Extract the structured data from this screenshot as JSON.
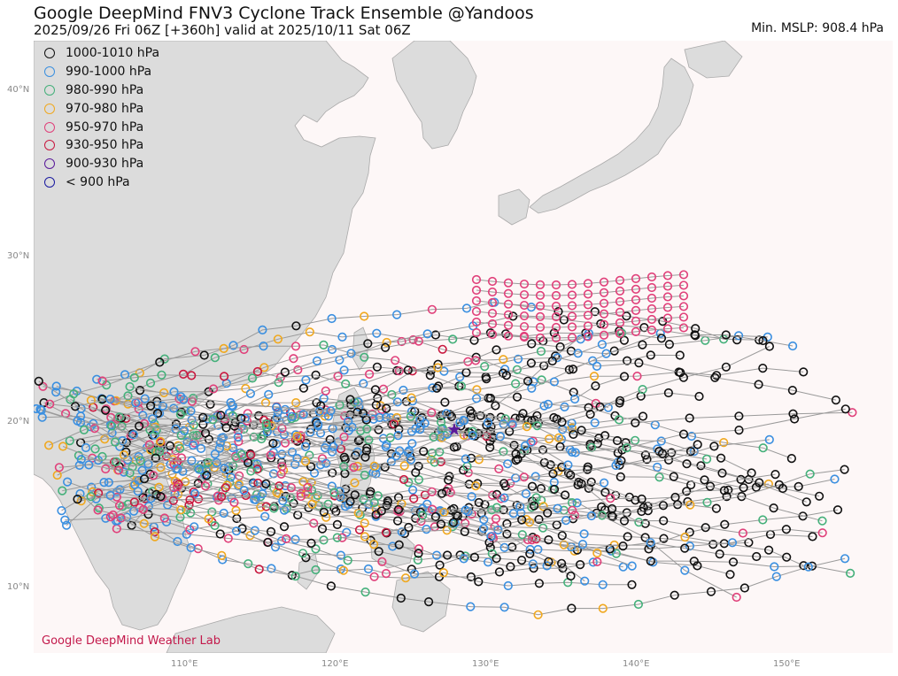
{
  "header": {
    "title": "Google DeepMind FNV3 Cyclone Track Ensemble @Yandoos",
    "subtitle": "2025/09/26  Fri  06Z [+360h] valid at 2025/10/11  Sat  06Z",
    "min_mslp": "Min. MSLP: 908.4 hPa"
  },
  "map": {
    "lat_ticks": [
      "40°N",
      "30°N",
      "20°N",
      "10°N"
    ],
    "lon_ticks": [
      "110°E",
      "120°E",
      "130°E",
      "140°E",
      "150°E"
    ],
    "land_color": "#dcdcdc",
    "ocean_color": "#fdf7f7"
  },
  "legend": {
    "items": [
      {
        "label": "1000-1010 hPa",
        "color": "#111111"
      },
      {
        "label": "990-1000 hPa",
        "color": "#3a8fe0"
      },
      {
        "label": "980-990 hPa",
        "color": "#44b07a"
      },
      {
        "label": "970-980 hPa",
        "color": "#f0a81e"
      },
      {
        "label": "950-970 hPa",
        "color": "#e0407a"
      },
      {
        "label": "930-950 hPa",
        "color": "#c8183f"
      },
      {
        "label": "900-930 hPa",
        "color": "#5a1a9a"
      },
      {
        "label": "< 900 hPa",
        "color": "#1a1aa0"
      }
    ]
  },
  "credit": "Google DeepMind Weather Lab"
}
